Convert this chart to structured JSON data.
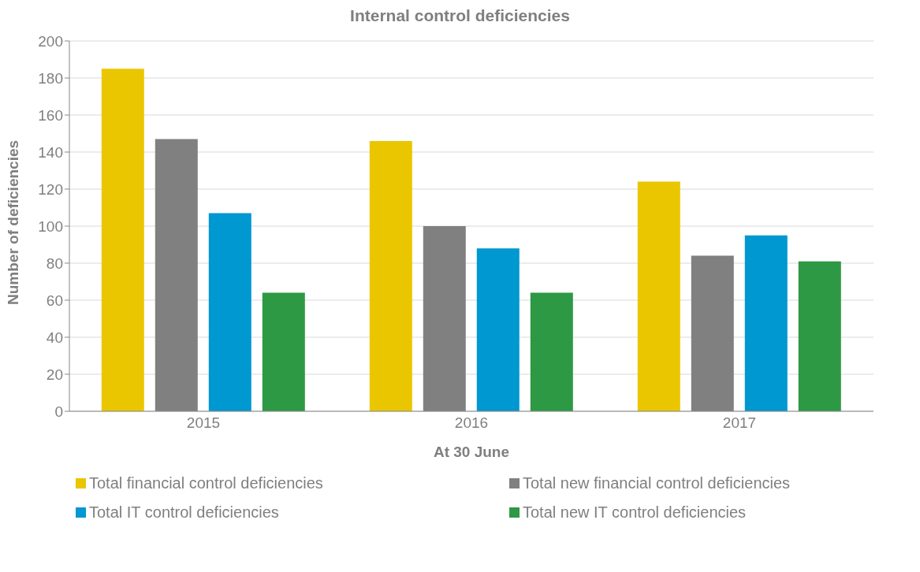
{
  "chart_data": {
    "type": "bar",
    "title": "Internal control deficiencies",
    "xlabel": "At 30 June",
    "ylabel": "Number of deficiencies",
    "categories": [
      "2015",
      "2016",
      "2017"
    ],
    "series": [
      {
        "name": "Total financial control deficiencies",
        "color": "#eac600",
        "values": [
          185,
          146,
          124
        ]
      },
      {
        "name": "Total new financial control deficiencies",
        "color": "#808080",
        "values": [
          147,
          100,
          84
        ]
      },
      {
        "name": "Total IT control deficiencies",
        "color": "#0098d0",
        "values": [
          107,
          88,
          95
        ]
      },
      {
        "name": "Total new IT control deficiencies",
        "color": "#2e9944",
        "values": [
          64,
          64,
          81
        ]
      }
    ],
    "ylim": [
      0,
      200
    ],
    "yticks": [
      0,
      20,
      40,
      60,
      80,
      100,
      120,
      140,
      160,
      180,
      200
    ],
    "grid": "y",
    "legend": "bottom"
  }
}
